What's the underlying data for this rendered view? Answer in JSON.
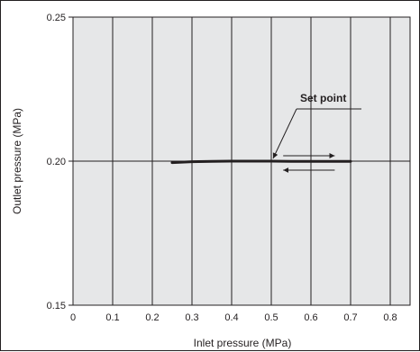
{
  "chart_data": {
    "type": "line",
    "title": "",
    "xlabel": "Inlet pressure (MPa)",
    "ylabel": "Outlet pressure  (MPa)",
    "xlim": [
      0,
      0.85
    ],
    "ylim": [
      0.15,
      0.25
    ],
    "x_ticks": [
      "0",
      "0.1",
      "0.2",
      "0.3",
      "0.4",
      "0.5",
      "0.6",
      "0.7",
      "0.8"
    ],
    "y_ticks": [
      "0.15",
      "0.20",
      "0.25"
    ],
    "grid": "vertical gridlines at each x tick; horizontal reference line at 0.20",
    "colors": {
      "plot_background": "#e6e7e8",
      "line": "#231f20"
    },
    "series": [
      {
        "x": [
          0.25,
          0.3,
          0.35,
          0.4,
          0.45,
          0.5,
          0.55,
          0.6,
          0.65,
          0.7
        ],
        "y": [
          0.1995,
          0.1998,
          0.1999,
          0.2,
          0.2,
          0.2,
          0.1999,
          0.1999,
          0.1999,
          0.1999
        ]
      }
    ],
    "annotations": [
      {
        "text": "Set point",
        "x": 0.5,
        "y": 0.2
      }
    ],
    "direction_arrows": [
      "increasing",
      "decreasing"
    ]
  }
}
